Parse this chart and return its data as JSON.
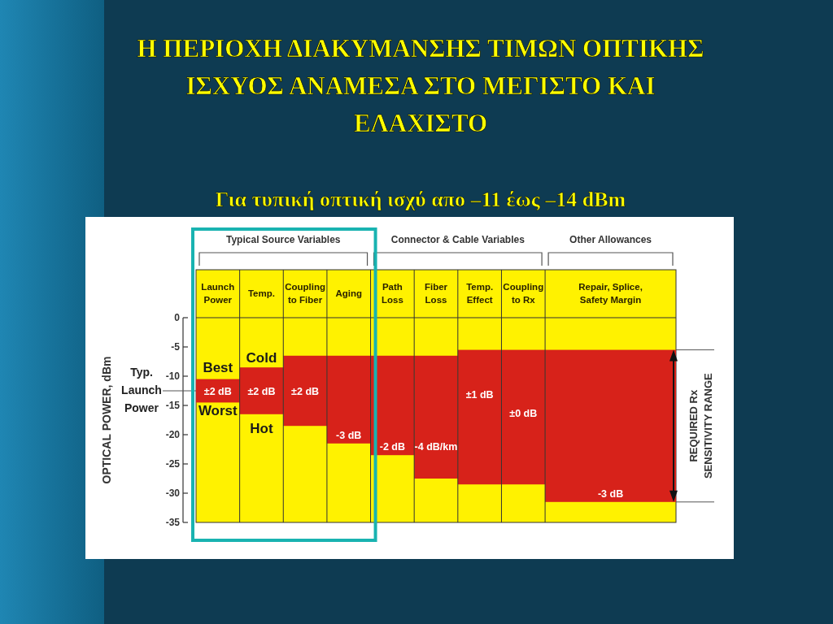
{
  "chart_data": {
    "type": "bar",
    "title": "Η ΠΕΡΙΟΧΗ ΔΙΑΚΥΜΑΝΣΗΣ ΤΙΜΩΝ ΟΠΤΙΚΗΣ ΙΣΧΥΟΣ ΑΝΑΜΕΣΑ ΣΤΟ ΜΕΓΙΣΤΟ ΚΑΙ ΕΛΑΧΙΣΤΟ",
    "subtitle": "Για τυπική οπτική ισχύ απο –11 έως –14 dBm",
    "ylabel": "OPTICAL POWER, dBm",
    "categories": [
      "Launch Power",
      "Temp.",
      "Coupling to Fiber",
      "Aging",
      "Path Loss",
      "Fiber Loss",
      "Temp. Effect",
      "Coupling to Rx",
      "Repair, Splice, Safety Margin"
    ],
    "base": [
      -14.5,
      -16.5,
      -18.5,
      -21.5,
      -23.5,
      -27.5,
      -28.5,
      -28.5,
      -31.5
    ],
    "values": [
      4,
      8,
      12,
      15,
      17,
      21,
      23,
      23,
      26
    ],
    "color": "#d7221a",
    "ylim": [
      -35,
      0
    ],
    "yticks": [
      0,
      {
        "value": -5,
        "label": "-5"
      },
      {
        "value": -10,
        "label": "-10"
      },
      {
        "value": -15,
        "label": "-15"
      },
      {
        "value": -20,
        "label": "-20"
      },
      {
        "value": -25,
        "label": "-25"
      },
      {
        "value": -30,
        "label": "-30"
      },
      {
        "value": -35,
        "label": "-35"
      }
    ],
    "annotations": [
      "Typical Source Variables",
      "Connector & Cable Variables",
      "Other Allowances",
      "REQUIRED Rx SENSITIVITY RANGE",
      "Typ. Launch Power",
      "Best",
      "Worst",
      "Cold",
      "Hot",
      "±2 dB",
      "±2 dB",
      "±2 dB",
      "-3 dB",
      "-2 dB",
      "-4 dB/km",
      "±1 dB",
      "±0 dB",
      "-3 dB"
    ]
  }
}
